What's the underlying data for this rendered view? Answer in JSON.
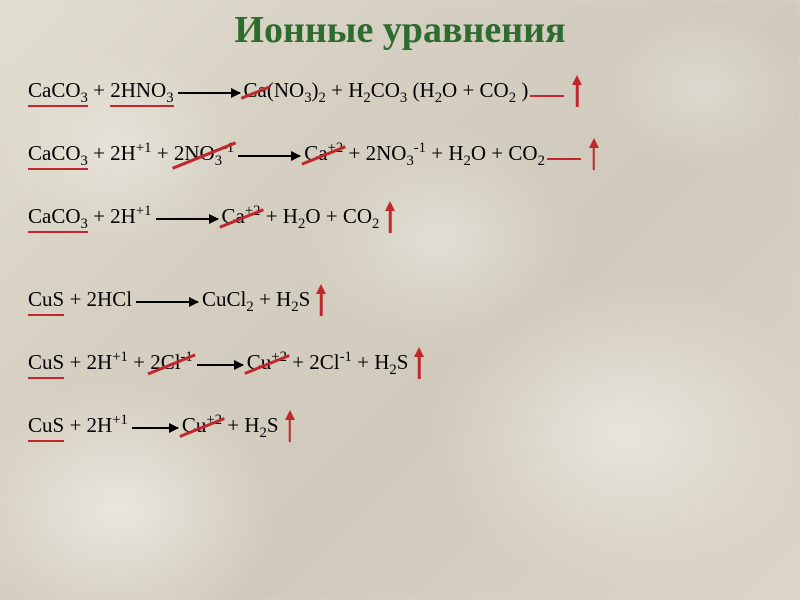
{
  "title": {
    "text": "Ионные уравнения",
    "color": "#2e6b2e"
  },
  "colors": {
    "red": "#c1272d",
    "black": "#000000"
  },
  "equations": [
    {
      "gap_before": false,
      "parts": [
        {
          "type": "term",
          "ul": true,
          "html": "CaCO<sub>3</sub>"
        },
        {
          "type": "text",
          "html": " + "
        },
        {
          "type": "term",
          "ul": true,
          "html": "2HNO<sub>3</sub>"
        },
        {
          "type": "arrow",
          "width": "normal"
        },
        {
          "type": "term",
          "strike": true,
          "html": "Ca"
        },
        {
          "type": "text",
          "html": "(NO<sub>3</sub>)<sub>2</sub> + H<sub>2</sub>CO<sub>3</sub> (H<sub>2</sub>O + CO<sub>2</sub> )"
        },
        {
          "type": "blank"
        },
        {
          "type": "up"
        }
      ]
    },
    {
      "gap_before": true,
      "parts": [
        {
          "type": "term",
          "ul": true,
          "html": "CaCO<sub>3</sub>"
        },
        {
          "type": "text",
          "html": " + 2H<sup>+1</sup> + "
        },
        {
          "type": "term",
          "strike": true,
          "html": "2NO<sub>3</sub><sup>-1</sup>"
        },
        {
          "type": "arrow",
          "width": "normal"
        },
        {
          "type": "term",
          "strike": true,
          "html": "Ca<sup>+2</sup>"
        },
        {
          "type": "text",
          "html": " + 2NO<sub>3</sub><sup>-1</sup> + H<sub>2</sub>O + CO<sub>2</sub>"
        },
        {
          "type": "blank"
        },
        {
          "type": "up"
        }
      ]
    },
    {
      "gap_before": true,
      "parts": [
        {
          "type": "term",
          "ul": true,
          "html": "CaCO<sub>3</sub>"
        },
        {
          "type": "text",
          "html": " + 2H<sup>+1</sup>"
        },
        {
          "type": "arrow",
          "width": "normal"
        },
        {
          "type": "term",
          "strike": true,
          "html": "Ca<sup>+2</sup>"
        },
        {
          "type": "text",
          "html": " + H<sub>2</sub>O + CO<sub>2</sub>"
        },
        {
          "type": "up"
        }
      ]
    },
    {
      "gap_before": true,
      "gap_large": true,
      "parts": [
        {
          "type": "term",
          "ul": true,
          "html": "CuS"
        },
        {
          "type": "text",
          "html": " + 2HCl"
        },
        {
          "type": "arrow",
          "width": "normal"
        },
        {
          "type": "text",
          "html": "CuCl<sub>2</sub> + H<sub>2</sub>S"
        },
        {
          "type": "up"
        }
      ]
    },
    {
      "gap_before": true,
      "parts": [
        {
          "type": "term",
          "ul": true,
          "html": "CuS"
        },
        {
          "type": "text",
          "html": " + 2H<sup>+1</sup> + "
        },
        {
          "type": "term",
          "strike": true,
          "html": "2Cl<sup>-1</sup>"
        },
        {
          "type": "arrow",
          "width": "short"
        },
        {
          "type": "term",
          "strike": true,
          "html": "Cu<sup>+2</sup>"
        },
        {
          "type": "text",
          "html": " + 2Cl<sup>-1</sup> + H<sub>2</sub>S"
        },
        {
          "type": "up"
        }
      ]
    },
    {
      "gap_before": true,
      "parts": [
        {
          "type": "term",
          "ul": true,
          "html": "CuS"
        },
        {
          "type": "text",
          "html": " + 2H<sup>+1</sup>"
        },
        {
          "type": "arrow",
          "width": "short"
        },
        {
          "type": "term",
          "strike": true,
          "html": "Cu<sup>+2</sup>"
        },
        {
          "type": "text",
          "html": " + H<sub>2</sub>S"
        },
        {
          "type": "up"
        }
      ]
    }
  ]
}
